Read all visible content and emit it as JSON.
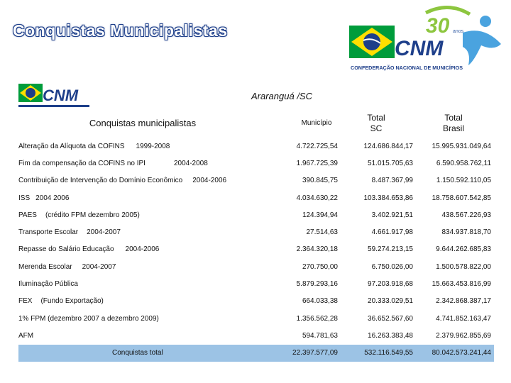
{
  "slide_title": "Conquistas Municipalistas",
  "logo": {
    "top_text": "CNM",
    "top_badge": "30 anos",
    "top_caption": "CONFEDERAÇÃO NACIONAL DE MUNICÍPIOS",
    "small_text": "CNM"
  },
  "city": "Araranguá /SC",
  "table": {
    "headers": {
      "label": "Conquistas municipalistas",
      "municipio": "Município",
      "sc_line1": "Total",
      "sc_line2": "SC",
      "br_line1": "Total",
      "br_line2": "Brasil"
    },
    "rows": [
      {
        "label": "Alteração da Alíquota da COFINS",
        "period": "1999-2008",
        "municipio": "4.722.725,54",
        "sc": "124.686.844,17",
        "br": "15.995.931.049,64"
      },
      {
        "label": "Fim da compensação da COFINS no IPI",
        "period": "2004-2008",
        "municipio": "1.967.725,39",
        "sc": "51.015.705,63",
        "br": "6.590.958.762,11"
      },
      {
        "label": "Contribuição de Intervenção do Domínio Econômico",
        "period": "2004-2006",
        "municipio": "390.845,75",
        "sc": "8.487.367,99",
        "br": "1.150.592.110,05"
      },
      {
        "label": "ISS",
        "period": "2004 2006",
        "municipio": "4.034.630,22",
        "sc": "103.384.653,86",
        "br": "18.758.607.542,85"
      },
      {
        "label": "PAES",
        "period": "(crédito FPM dezembro 2005)",
        "municipio": "124.394,94",
        "sc": "3.402.921,51",
        "br": "438.567.226,93"
      },
      {
        "label": "Transporte Escolar",
        "period": "2004-2007",
        "municipio": "27.514,63",
        "sc": "4.661.917,98",
        "br": "834.937.818,70"
      },
      {
        "label": "Repasse do Salário Educação",
        "period": "2004-2006",
        "municipio": "2.364.320,18",
        "sc": "59.274.213,15",
        "br": "9.644.262.685,83"
      },
      {
        "label": "Merenda Escolar",
        "period": "2004-2007",
        "municipio": "270.750,00",
        "sc": "6.750.026,00",
        "br": "1.500.578.822,00"
      },
      {
        "label": "Iluminação Pública",
        "period": "",
        "municipio": "5.879.293,16",
        "sc": "97.203.918,68",
        "br": "15.663.453.816,99"
      },
      {
        "label": "FEX",
        "period": "(Fundo Exportação)",
        "municipio": "664.033,38",
        "sc": "20.333.029,51",
        "br": "2.342.868.387,17"
      },
      {
        "label": "1% FPM (dezembro 2007 a dezembro 2009)",
        "period": "",
        "municipio": "1.356.562,28",
        "sc": "36.652.567,60",
        "br": "4.741.852.163,47"
      },
      {
        "label": "AFM",
        "period": "",
        "municipio": "594.781,63",
        "sc": "16.263.383,48",
        "br": "2.379.962.855,69"
      }
    ],
    "total": {
      "label": "Conquistas total",
      "municipio": "22.397.577,09",
      "sc": "532.116.549,55",
      "br": "80.042.573.241,44"
    }
  }
}
